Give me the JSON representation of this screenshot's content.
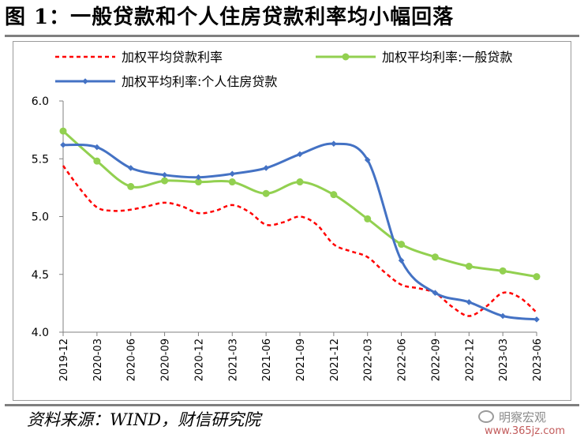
{
  "title": "图 1：一般贷款和个人住房贷款利率均小幅回落",
  "source": "资料来源：WIND，财信研究院",
  "watermark": {
    "name": "明察宏观",
    "url": "www.365jz.com",
    "icon": "wechat-bubble-icon"
  },
  "chart_data": {
    "type": "line",
    "title": "一般贷款和个人住房贷款利率均小幅回落",
    "xlabel": "",
    "ylabel": "",
    "ylim": [
      4.0,
      6.0
    ],
    "yticks": [
      "4.0",
      "4.5",
      "5.0",
      "5.5",
      "6.0"
    ],
    "grid": false,
    "legend_position": "top",
    "categories": [
      "2019-12",
      "2020-03",
      "2020-06",
      "2020-09",
      "2020-12",
      "2021-03",
      "2021-06",
      "2021-09",
      "2021-12",
      "2022-03",
      "2022-06",
      "2022-09",
      "2022-12",
      "2023-03",
      "2023-06"
    ],
    "series": [
      {
        "name": "加权平均贷款利率",
        "color": "#ff0000",
        "style": "dashed",
        "markers": false,
        "x": [
          0,
          0.5,
          1,
          1.5,
          2,
          2.5,
          3,
          3.5,
          4,
          4.5,
          5,
          5.5,
          6,
          6.5,
          7,
          7.5,
          8,
          8.5,
          9,
          9.5,
          10,
          10.5,
          11,
          11.5,
          12,
          12.5,
          13,
          13.5,
          14
        ],
        "values": [
          5.44,
          5.24,
          5.08,
          5.05,
          5.06,
          5.09,
          5.12,
          5.09,
          5.03,
          5.05,
          5.1,
          5.04,
          4.93,
          4.95,
          5.0,
          4.93,
          4.76,
          4.7,
          4.65,
          4.52,
          4.41,
          4.38,
          4.34,
          4.22,
          4.14,
          4.22,
          4.34,
          4.3,
          4.17
        ]
      },
      {
        "name": "加权平均利率:一般贷款",
        "color": "#92d050",
        "style": "solid",
        "markers": true,
        "values": [
          5.74,
          5.48,
          5.26,
          5.31,
          5.3,
          5.3,
          5.2,
          5.3,
          5.19,
          4.98,
          4.76,
          4.65,
          4.57,
          4.53,
          4.48
        ]
      },
      {
        "name": "加权平均利率:个人住房贷款",
        "color": "#4472c4",
        "style": "solid",
        "markers": true,
        "values": [
          5.62,
          5.6,
          5.42,
          5.36,
          5.34,
          5.37,
          5.42,
          5.54,
          5.63,
          5.49,
          4.62,
          4.34,
          4.26,
          4.14,
          4.11
        ]
      }
    ]
  }
}
